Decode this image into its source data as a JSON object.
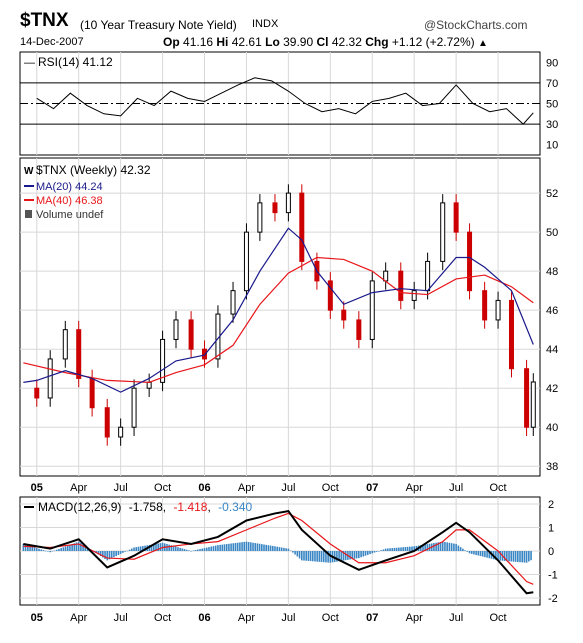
{
  "header": {
    "symbol": "$TNX",
    "name": "(10 Year Treasury Note Yield)",
    "exchange": "INDX",
    "brand": "@StockCharts.com",
    "date": "14-Dec-2007",
    "op_label": "Op",
    "op_value": "41.16",
    "hi_label": "Hi",
    "hi_value": "42.61",
    "lo_label": "Lo",
    "lo_value": "39.90",
    "cl_label": "Cl",
    "cl_value": "42.32",
    "chg_label": "Chg",
    "chg_value": "+1.12 (+2.72%)",
    "chg_arrow": "▲"
  },
  "colors": {
    "price_up": "#000000",
    "price_down": "#cc0000",
    "ma20": "#1a1a8c",
    "ma40": "#e8161a",
    "macd_line": "#000000",
    "signal_line": "#e8161a",
    "histogram": "#3a86c4",
    "grid": "#d8d8d8"
  },
  "chart_data": [
    {
      "type": "line",
      "panel": "RSI",
      "legend_title": "RSI(14) 41.12",
      "ylim": [
        0,
        100
      ],
      "yticks": [
        10,
        30,
        50,
        70,
        90
      ],
      "reference_lines": [
        30,
        50,
        70
      ],
      "series": [
        {
          "name": "RSI(14)",
          "x": [
            2005.0,
            2005.1,
            2005.2,
            2005.3,
            2005.4,
            2005.5,
            2005.6,
            2005.7,
            2005.8,
            2005.9,
            2006.0,
            2006.1,
            2006.2,
            2006.3,
            2006.4,
            2006.5,
            2006.6,
            2006.7,
            2006.8,
            2006.9,
            2007.0,
            2007.1,
            2007.2,
            2007.3,
            2007.4,
            2007.5,
            2007.6,
            2007.7,
            2007.8,
            2007.9,
            2007.96
          ],
          "values": [
            55,
            45,
            60,
            48,
            40,
            38,
            55,
            48,
            62,
            55,
            52,
            60,
            68,
            75,
            72,
            62,
            50,
            42,
            45,
            40,
            52,
            55,
            60,
            48,
            50,
            68,
            50,
            42,
            45,
            30,
            41
          ]
        }
      ]
    },
    {
      "type": "line",
      "panel": "Price",
      "legend": [
        "$TNX (Weekly) 42.32",
        "MA(20) 44.24",
        "MA(40) 46.38",
        "Volume undef"
      ],
      "ylim": [
        37.5,
        53.8
      ],
      "yticks": [
        38,
        40,
        42,
        44,
        46,
        48,
        50,
        52
      ],
      "x_tick_labels": [
        "05",
        "Apr",
        "Jul",
        "Oct",
        "06",
        "Apr",
        "Jul",
        "Oct",
        "07",
        "Apr",
        "Jul",
        "Oct"
      ],
      "x_ticks": [
        2005.0,
        2005.25,
        2005.5,
        2005.75,
        2006.0,
        2006.25,
        2006.5,
        2006.75,
        2007.0,
        2007.25,
        2007.5,
        2007.75
      ],
      "series": [
        {
          "name": "$TNX (Weekly)",
          "x": [
            2004.92,
            2005.0,
            2005.08,
            2005.17,
            2005.25,
            2005.33,
            2005.42,
            2005.5,
            2005.58,
            2005.67,
            2005.75,
            2005.83,
            2005.92,
            2006.0,
            2006.08,
            2006.17,
            2006.25,
            2006.33,
            2006.42,
            2006.5,
            2006.58,
            2006.67,
            2006.75,
            2006.83,
            2006.92,
            2007.0,
            2007.08,
            2007.17,
            2007.25,
            2007.33,
            2007.42,
            2007.5,
            2007.58,
            2007.67,
            2007.75,
            2007.83,
            2007.92,
            2007.96
          ],
          "values": [
            42.0,
            41.5,
            43.5,
            45.0,
            42.5,
            41.0,
            39.5,
            40.0,
            42.0,
            42.3,
            44.5,
            45.5,
            44.0,
            43.5,
            45.8,
            47.0,
            50.0,
            51.5,
            51.0,
            52.0,
            48.5,
            47.5,
            46.0,
            45.5,
            44.5,
            47.5,
            48.0,
            46.5,
            47.0,
            48.5,
            51.5,
            50.0,
            47.0,
            45.5,
            46.5,
            43.0,
            40.0,
            42.32
          ]
        },
        {
          "name": "MA(20)",
          "x": [
            2004.92,
            2005.0,
            2005.17,
            2005.33,
            2005.5,
            2005.67,
            2005.83,
            2006.0,
            2006.17,
            2006.33,
            2006.5,
            2006.58,
            2006.67,
            2006.83,
            2007.0,
            2007.17,
            2007.33,
            2007.5,
            2007.58,
            2007.67,
            2007.83,
            2007.96
          ],
          "values": [
            42.3,
            42.4,
            42.9,
            42.5,
            41.8,
            42.5,
            43.4,
            43.7,
            45.5,
            48.0,
            50.2,
            49.6,
            48.0,
            46.3,
            46.9,
            47.1,
            47.0,
            48.7,
            48.7,
            48.2,
            47.0,
            44.24
          ]
        },
        {
          "name": "MA(40)",
          "x": [
            2004.92,
            2005.17,
            2005.42,
            2005.67,
            2005.83,
            2006.0,
            2006.17,
            2006.33,
            2006.5,
            2006.67,
            2006.83,
            2007.0,
            2007.17,
            2007.33,
            2007.5,
            2007.67,
            2007.83,
            2007.96
          ],
          "values": [
            43.3,
            42.8,
            42.4,
            42.3,
            42.8,
            43.2,
            44.2,
            46.3,
            47.9,
            48.7,
            48.6,
            48.0,
            46.9,
            46.8,
            47.6,
            47.8,
            47.2,
            46.38
          ]
        }
      ]
    },
    {
      "type": "line",
      "panel": "MACD",
      "legend_title": "MACD(12,26,9)",
      "legend_values": [
        "-1.758",
        "-1.418",
        "-0.340"
      ],
      "ylim": [
        -2.3,
        2.3
      ],
      "yticks": [
        -2,
        -1,
        0,
        1,
        2
      ],
      "x_tick_labels": [
        "05",
        "Apr",
        "Jul",
        "Oct",
        "06",
        "Apr",
        "Jul",
        "Oct",
        "07",
        "Apr",
        "Jul",
        "Oct"
      ],
      "x_ticks": [
        2005.0,
        2005.25,
        2005.5,
        2005.75,
        2006.0,
        2006.25,
        2006.5,
        2006.75,
        2007.0,
        2007.25,
        2007.5,
        2007.75
      ],
      "series": [
        {
          "name": "MACD",
          "x": [
            2004.92,
            2005.08,
            2005.25,
            2005.42,
            2005.58,
            2005.75,
            2005.92,
            2006.08,
            2006.25,
            2006.42,
            2006.5,
            2006.58,
            2006.75,
            2006.92,
            2007.08,
            2007.25,
            2007.42,
            2007.5,
            2007.58,
            2007.75,
            2007.92,
            2007.96
          ],
          "values": [
            0.3,
            0.1,
            0.5,
            -0.7,
            -0.2,
            0.5,
            0.3,
            0.6,
            1.3,
            1.6,
            1.7,
            0.9,
            -0.2,
            -0.8,
            -0.4,
            0.0,
            0.8,
            1.2,
            0.8,
            -0.4,
            -1.8,
            -1.758
          ]
        },
        {
          "name": "Signal",
          "x": [
            2004.92,
            2005.08,
            2005.25,
            2005.42,
            2005.58,
            2005.75,
            2005.92,
            2006.08,
            2006.25,
            2006.42,
            2006.5,
            2006.58,
            2006.75,
            2006.92,
            2007.08,
            2007.25,
            2007.42,
            2007.5,
            2007.58,
            2007.75,
            2007.92,
            2007.96
          ],
          "values": [
            0.2,
            0.15,
            0.3,
            -0.3,
            -0.35,
            0.15,
            0.3,
            0.4,
            0.9,
            1.4,
            1.6,
            1.3,
            0.3,
            -0.5,
            -0.5,
            -0.2,
            0.4,
            0.9,
            0.9,
            0.0,
            -1.3,
            -1.418
          ]
        },
        {
          "name": "Histogram",
          "x": [
            2004.92,
            2005.08,
            2005.25,
            2005.42,
            2005.58,
            2005.75,
            2005.92,
            2006.08,
            2006.25,
            2006.42,
            2006.5,
            2006.58,
            2006.75,
            2006.92,
            2007.08,
            2007.25,
            2007.42,
            2007.5,
            2007.58,
            2007.75,
            2007.92,
            2007.96
          ],
          "values": [
            0.3,
            -0.05,
            0.4,
            -0.4,
            0.15,
            0.35,
            0.0,
            0.25,
            0.4,
            0.2,
            0.1,
            -0.4,
            -0.5,
            -0.3,
            0.1,
            0.2,
            0.4,
            0.3,
            -0.1,
            -0.4,
            -0.5,
            -0.34
          ]
        }
      ]
    }
  ]
}
